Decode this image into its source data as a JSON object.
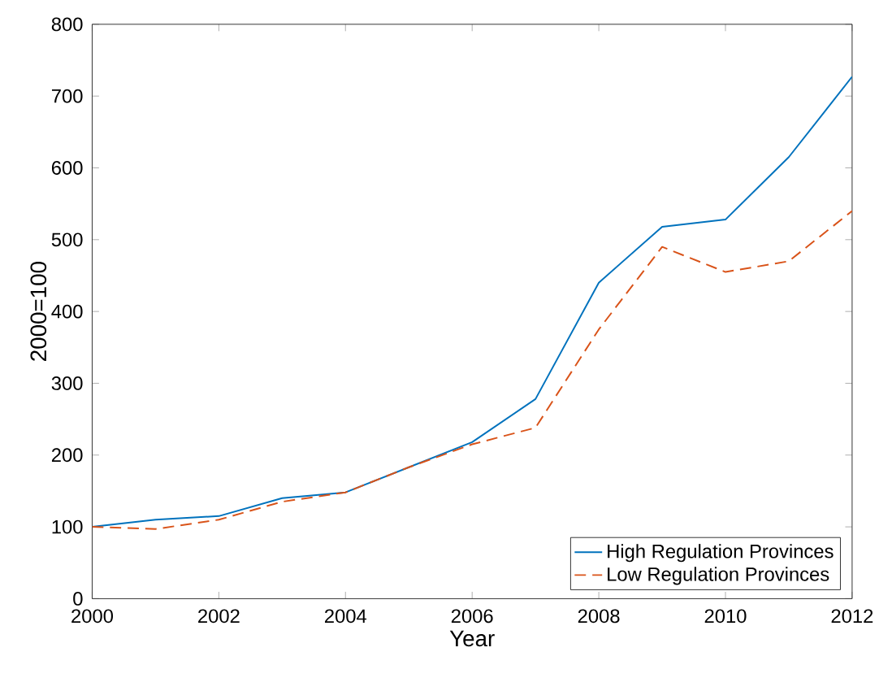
{
  "chart_data": {
    "type": "line",
    "xlabel": "Year",
    "ylabel": "2000=100",
    "x": [
      2000,
      2001,
      2002,
      2003,
      2004,
      2005,
      2006,
      2007,
      2008,
      2009,
      2010,
      2011,
      2012
    ],
    "series": [
      {
        "name": "High Regulation Provinces",
        "color": "#0072bd",
        "line_style": "solid",
        "values": [
          100,
          110,
          115,
          140,
          148,
          183,
          218,
          278,
          440,
          518,
          528,
          615,
          727
        ]
      },
      {
        "name": "Low Regulation Provinces",
        "color": "#d95319",
        "line_style": "dashed",
        "values": [
          100,
          97,
          110,
          135,
          148,
          183,
          215,
          238,
          375,
          490,
          455,
          470,
          540
        ]
      }
    ],
    "xlim": [
      2000,
      2012
    ],
    "xticks": [
      2000,
      2002,
      2004,
      2006,
      2008,
      2010,
      2012
    ],
    "ylim": [
      0,
      800
    ],
    "yticks": [
      0,
      100,
      200,
      300,
      400,
      500,
      600,
      700,
      800
    ],
    "grid": false,
    "legend": "bottom right",
    "marker": "none"
  }
}
